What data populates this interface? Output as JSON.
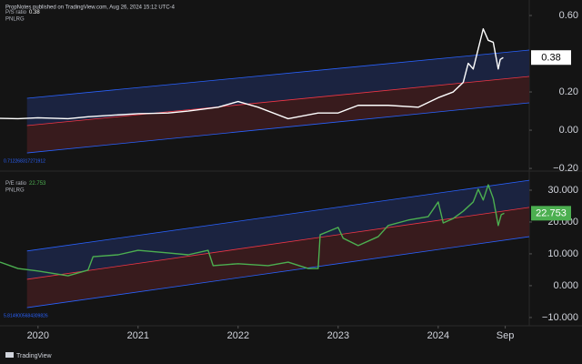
{
  "header": "PropNotes published on TradingView.com, Aug 26, 2024 15:12 UTC-4",
  "footer": "TradingView",
  "chart_data": [
    {
      "type": "line",
      "subtitle": "PNLRG",
      "annotation": "0.712268317271912",
      "xlim": [
        2019.62,
        2024.91
      ],
      "ylim": [
        -0.214,
        0.681
      ],
      "yticks": [
        {
          "value": 0.6,
          "label": "0.60"
        },
        {
          "value": 0.2,
          "label": "0.20"
        },
        {
          "value": 0,
          "label": "0.00"
        },
        {
          "value": -0.2,
          "label": "−0.20"
        }
      ],
      "channel": {
        "x": [
          2019.89,
          2024.91
        ],
        "upper": [
          0.167,
          0.419
        ],
        "mid": [
          0.024,
          0.281
        ],
        "lower": [
          -0.119,
          0.143
        ],
        "upper_color": "#2962ff",
        "mid_color": "#f23645",
        "upper_fill": "#1b2340",
        "lower_fill": "#381b1d"
      },
      "x": [
        2019.62,
        2019.8,
        2020.0,
        2020.3,
        2020.5,
        2020.8,
        2021.0,
        2021.3,
        2021.5,
        2021.8,
        2022.0,
        2022.2,
        2022.5,
        2022.8,
        2023.0,
        2023.2,
        2023.5,
        2023.8,
        2024.0,
        2024.15,
        2024.25,
        2024.3,
        2024.35,
        2024.45,
        2024.5,
        2024.55,
        2024.6,
        2024.62,
        2024.65
      ],
      "series": [
        {
          "name": "P/S ratio",
          "color": "#ffffff",
          "values": [
            0.062,
            0.06,
            0.065,
            0.06,
            0.07,
            0.08,
            0.086,
            0.09,
            0.1,
            0.12,
            0.15,
            0.12,
            0.06,
            0.09,
            0.09,
            0.13,
            0.13,
            0.12,
            0.17,
            0.2,
            0.25,
            0.35,
            0.32,
            0.53,
            0.47,
            0.46,
            0.32,
            0.37,
            0.38
          ]
        }
      ]
    },
    {
      "type": "line",
      "subtitle": "PNLRG",
      "annotation": "5.8149005684309826",
      "xlim": [
        2019.62,
        2024.91
      ],
      "ylim": [
        -12.6,
        36
      ],
      "xticks": [
        2020,
        2021,
        2022,
        2023,
        2024,
        {
          "value": 2024.67,
          "label": "Sep"
        }
      ],
      "yticks": [
        {
          "value": 30,
          "label": "30.000"
        },
        {
          "value": 20,
          "label": "20.000"
        },
        {
          "value": 10,
          "label": "10.000"
        },
        {
          "value": 0,
          "label": "0.000"
        },
        {
          "value": -10,
          "label": "−10.000"
        }
      ],
      "channel": {
        "x": [
          2019.89,
          2024.91
        ],
        "upper": [
          10.9,
          33.1
        ],
        "mid": [
          2.0,
          24.6
        ],
        "lower": [
          -6.9,
          15.4
        ],
        "upper_color": "#2962ff",
        "mid_color": "#f23645",
        "upper_fill": "#1b2340",
        "lower_fill": "#381b1d"
      },
      "x": [
        2019.62,
        2019.8,
        2020.0,
        2020.3,
        2020.5,
        2020.55,
        2020.8,
        2021.0,
        2021.3,
        2021.5,
        2021.7,
        2021.75,
        2022.0,
        2022.3,
        2022.5,
        2022.7,
        2022.8,
        2022.82,
        2023.0,
        2023.05,
        2023.2,
        2023.4,
        2023.5,
        2023.7,
        2023.9,
        2024.0,
        2024.05,
        2024.15,
        2024.25,
        2024.35,
        2024.4,
        2024.45,
        2024.5,
        2024.55,
        2024.6,
        2024.63,
        2024.66
      ],
      "series": [
        {
          "name": "P/E ratio",
          "color": "#4caf50",
          "values": [
            7.4,
            5.4,
            4.6,
            3.1,
            4.9,
            9.1,
            9.7,
            11.1,
            10.3,
            9.7,
            11.1,
            6.3,
            6.9,
            6.3,
            7.4,
            5.4,
            5.4,
            16.0,
            18.3,
            14.9,
            12.6,
            15.4,
            18.9,
            20.6,
            21.7,
            26.3,
            19.7,
            21.1,
            23.4,
            26.3,
            30.3,
            26.9,
            31.7,
            27.4,
            18.9,
            22.3,
            22.753
          ]
        }
      ]
    }
  ]
}
